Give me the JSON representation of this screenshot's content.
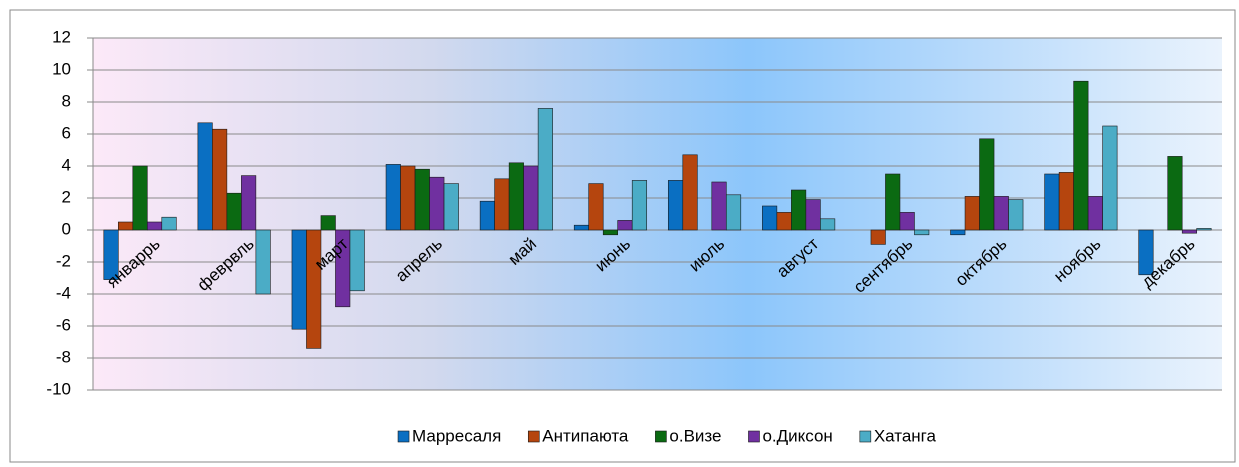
{
  "chart_data": {
    "type": "bar",
    "categories": [
      "январрь",
      "феврвль",
      "март",
      "апрель",
      "май",
      "июнь",
      "июль",
      "август",
      "сентябрь",
      "октябрь",
      "ноябрь",
      "декабрь"
    ],
    "series": [
      {
        "name": "Марресаля",
        "color": "#0a6fc2",
        "values": [
          -3.1,
          6.7,
          -6.2,
          4.1,
          1.8,
          0.3,
          3.1,
          1.5,
          0,
          -0.3,
          3.5,
          -2.8
        ]
      },
      {
        "name": "Антипаюта",
        "color": "#b5450e",
        "values": [
          0.5,
          6.3,
          -7.4,
          4.0,
          3.2,
          2.9,
          4.7,
          1.1,
          -0.9,
          2.1,
          3.6,
          0
        ]
      },
      {
        "name": "о.Визе",
        "color": "#0b6a12",
        "values": [
          4.0,
          2.3,
          0.9,
          3.8,
          4.2,
          -0.3,
          0,
          2.5,
          3.5,
          5.7,
          9.3,
          4.6
        ]
      },
      {
        "name": "о.Диксон",
        "color": "#7030a0",
        "values": [
          0.5,
          3.4,
          -4.8,
          3.3,
          4.0,
          0.6,
          3.0,
          1.9,
          1.1,
          2.1,
          2.1,
          -0.2
        ]
      },
      {
        "name": "Хатанга",
        "color": "#4bacc6",
        "values": [
          0.8,
          -4.0,
          -3.8,
          2.9,
          7.6,
          3.1,
          2.2,
          0.7,
          -0.3,
          1.9,
          6.5,
          0.1
        ]
      }
    ],
    "ylim": [
      -10,
      12
    ],
    "yticks": [
      -10,
      -8,
      -6,
      -4,
      -2,
      0,
      2,
      4,
      6,
      8,
      10,
      12
    ],
    "grid": true,
    "legend": "bottom"
  }
}
